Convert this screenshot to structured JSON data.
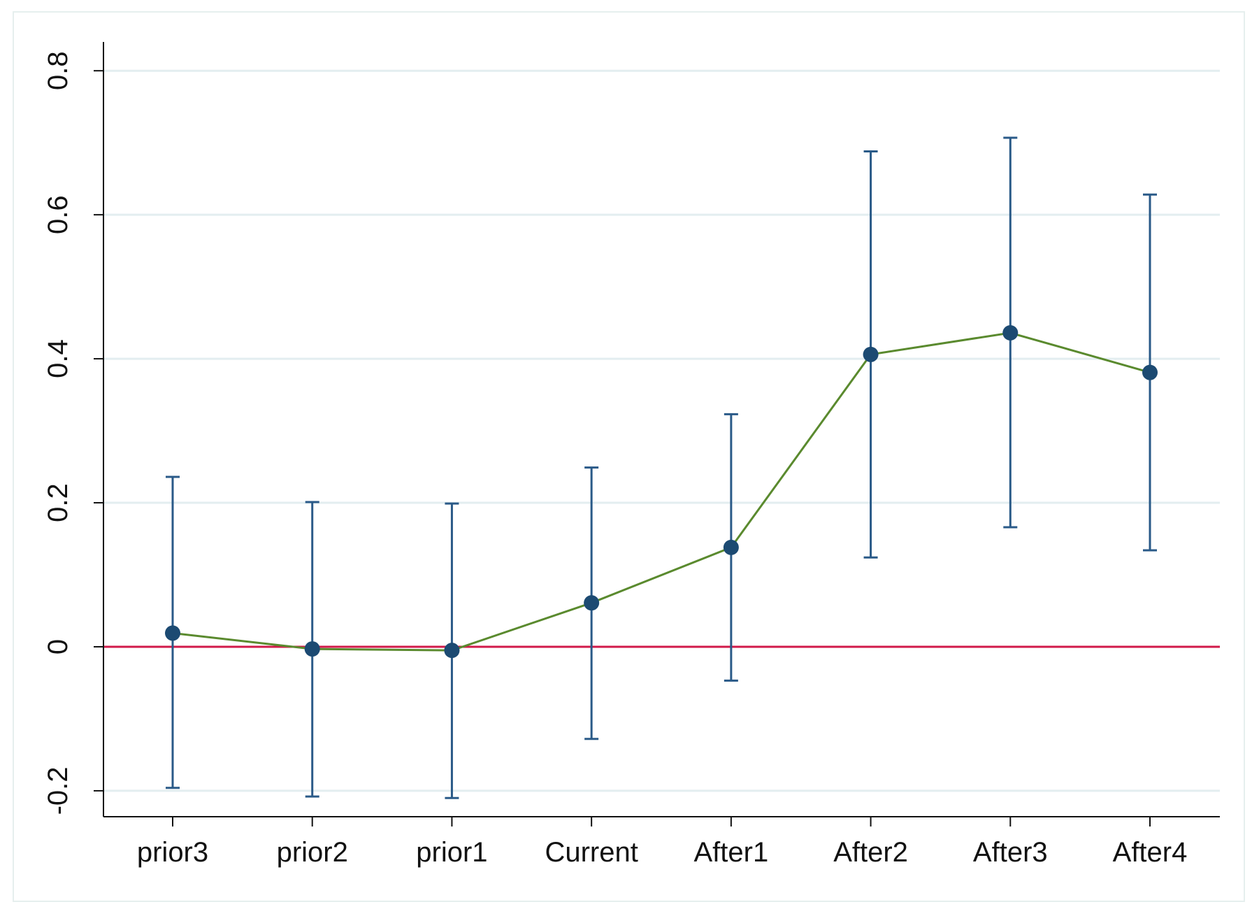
{
  "chart_data": {
    "type": "line",
    "title": "",
    "xlabel": "",
    "ylabel": "",
    "categories": [
      "prior3",
      "prior2",
      "prior1",
      "Current",
      "After1",
      "After2",
      "After3",
      "After4"
    ],
    "series": [
      {
        "values": [
          0.019,
          -0.003,
          -0.005,
          0.061,
          0.138,
          0.406,
          0.436,
          0.381
        ],
        "ci_lower": [
          -0.196,
          -0.208,
          -0.21,
          -0.128,
          -0.047,
          0.124,
          0.166,
          0.134
        ],
        "ci_upper": [
          0.236,
          0.201,
          0.199,
          0.249,
          0.323,
          0.688,
          0.707,
          0.628
        ],
        "line_color": "#5a8a2e",
        "marker_color": "#1c4a72",
        "errorbar_color": "#2a5a88"
      }
    ],
    "ylim": [
      -0.236,
      0.84
    ],
    "yticks": [
      -0.2,
      0,
      0.2,
      0.4,
      0.6,
      0.8
    ],
    "ytick_labels": [
      "-0.2",
      "0",
      "0.2",
      "0.4",
      "0.6",
      "0.8"
    ],
    "grid": true,
    "grid_color": "#e3eef0",
    "reference_line": {
      "y": 0,
      "color": "#d11a4a"
    },
    "legend": "none"
  }
}
